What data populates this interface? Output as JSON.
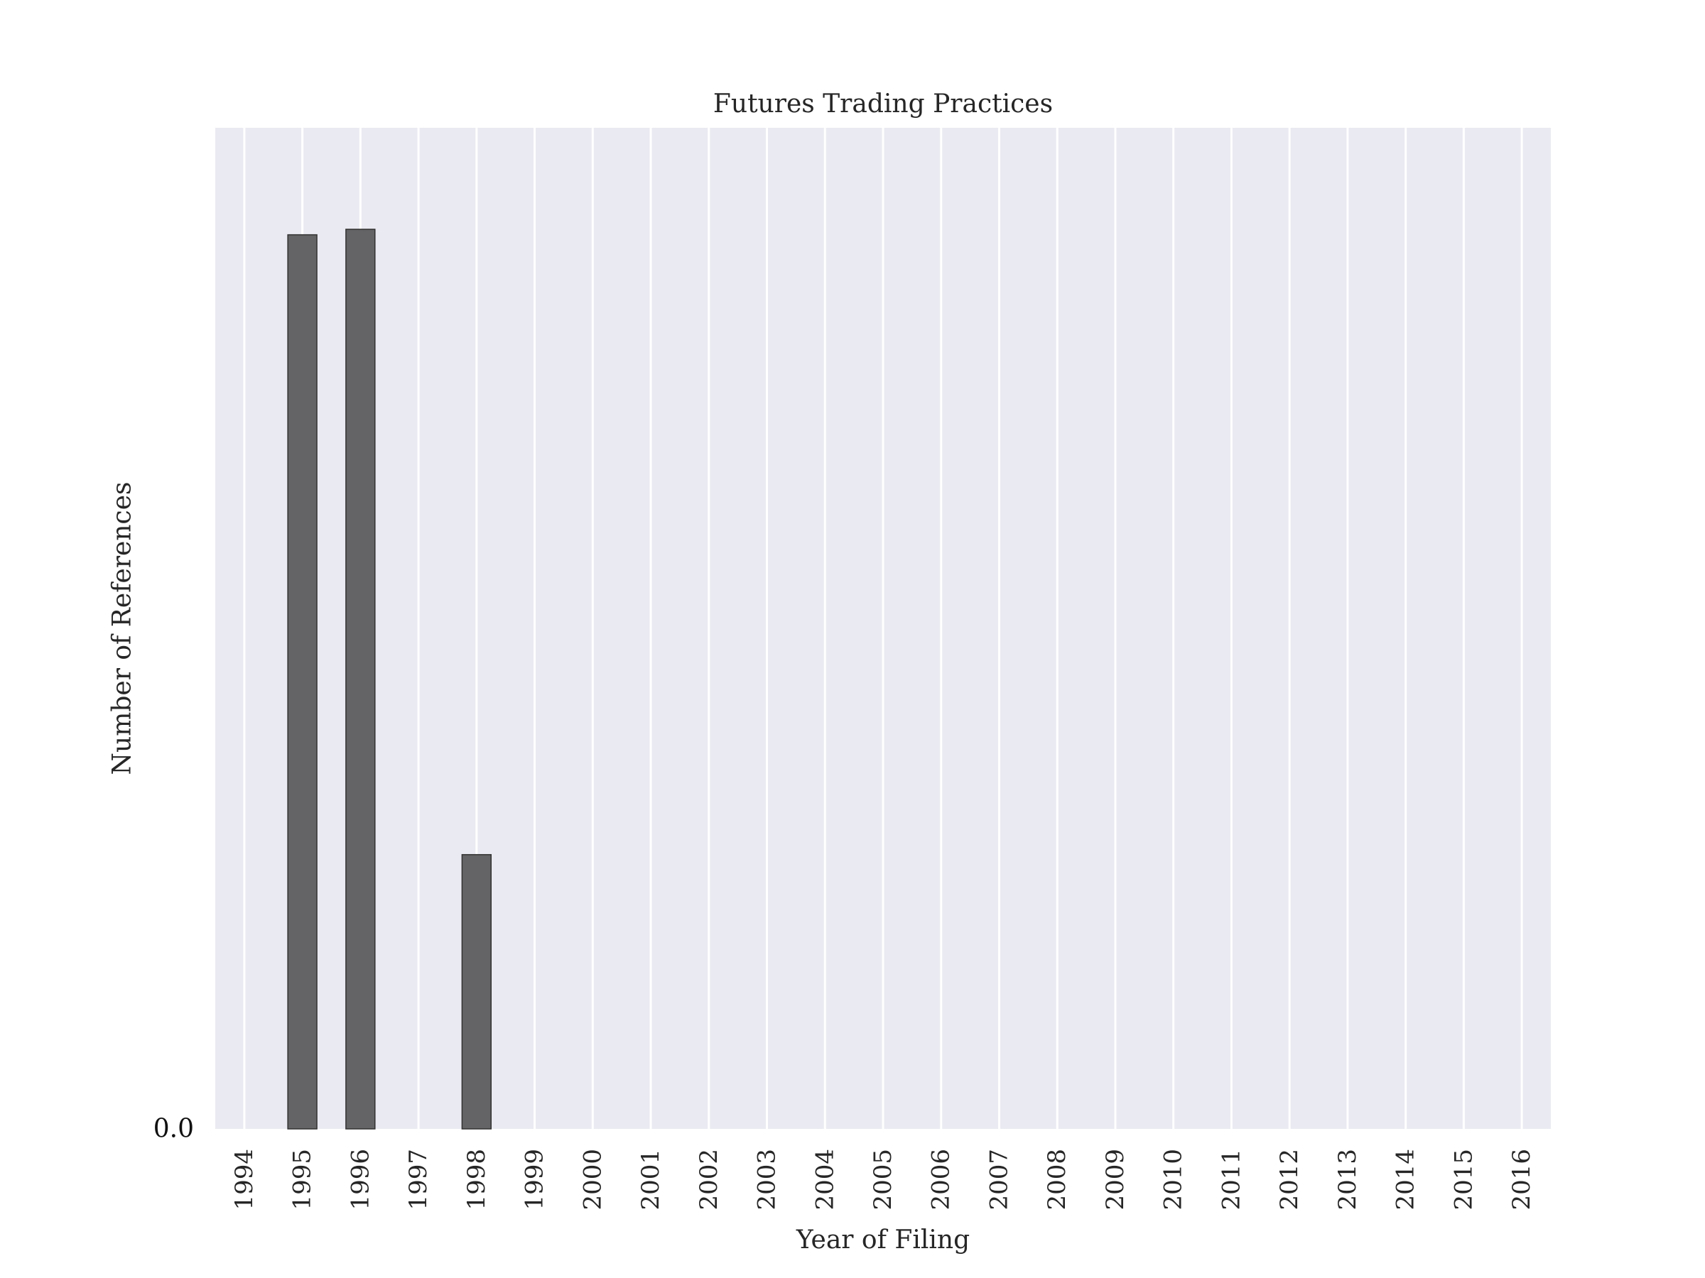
{
  "chart_data": {
    "type": "bar",
    "title": "Futures Trading Practices",
    "xlabel": "Year of Filing",
    "ylabel": "Number of References",
    "categories": [
      "1994",
      "1995",
      "1996",
      "1997",
      "1998",
      "1999",
      "2000",
      "2001",
      "2002",
      "2003",
      "2004",
      "2005",
      "2006",
      "2007",
      "2008",
      "2009",
      "2010",
      "2011",
      "2012",
      "2013",
      "2014",
      "2015",
      "2016"
    ],
    "values": [
      0,
      3.26,
      3.28,
      0,
      1.0,
      0,
      0,
      0,
      0,
      0,
      0,
      0,
      0,
      0,
      0,
      0,
      0,
      0,
      0,
      0,
      0,
      0,
      0
    ],
    "yticks": [
      {
        "value": 0,
        "label": "0.0"
      }
    ],
    "ylim": [
      0,
      3.65
    ],
    "grid": "vertical",
    "colors": {
      "plot_background": "#eaeaf2",
      "gridline": "#ffffff",
      "bar_fill": "#646466",
      "bar_edge": "#333333"
    }
  }
}
